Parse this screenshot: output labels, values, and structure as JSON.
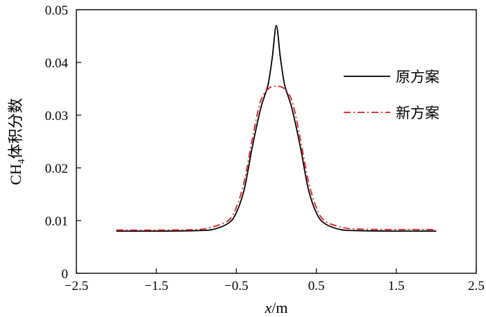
{
  "chart_data": {
    "type": "line",
    "xlabel_var": "x",
    "xlabel_unit": "/m",
    "ylabel_main": "CH",
    "ylabel_sub": "4",
    "ylabel_rest": "体积分数",
    "xlim": [
      -2.5,
      2.5
    ],
    "ylim": [
      0,
      0.05
    ],
    "x_ticks": [
      -2.5,
      -1.5,
      -0.5,
      0.5,
      1.5,
      2.5
    ],
    "x_tick_labels": [
      "−2.5",
      "−1.5",
      "−0.5",
      "0.5",
      "1.5",
      "2.5"
    ],
    "y_ticks": [
      0,
      0.01,
      0.02,
      0.03,
      0.04,
      0.05
    ],
    "y_tick_labels": [
      "0",
      "0.01",
      "0.02",
      "0.03",
      "0.04",
      "0.05"
    ],
    "grid": false,
    "legend_position": "right",
    "series": [
      {
        "name": "原方案",
        "color": "#000000",
        "dash": "solid",
        "x": [
          -2.0,
          -1.5,
          -1.0,
          -0.8,
          -0.6,
          -0.5,
          -0.4,
          -0.3,
          -0.2,
          -0.15,
          -0.1,
          -0.05,
          0.0,
          0.05,
          0.1,
          0.15,
          0.2,
          0.3,
          0.4,
          0.5,
          0.6,
          0.8,
          1.0,
          1.5,
          2.0
        ],
        "y": [
          0.008,
          0.008,
          0.0081,
          0.0083,
          0.0095,
          0.0115,
          0.016,
          0.024,
          0.031,
          0.0335,
          0.036,
          0.041,
          0.047,
          0.041,
          0.036,
          0.0335,
          0.031,
          0.024,
          0.016,
          0.0115,
          0.0095,
          0.0083,
          0.0081,
          0.008,
          0.008
        ]
      },
      {
        "name": "新方案",
        "color": "#e0191f",
        "dash": "dashdot",
        "x": [
          -2.0,
          -1.5,
          -1.0,
          -0.8,
          -0.6,
          -0.5,
          -0.4,
          -0.3,
          -0.2,
          -0.1,
          0.0,
          0.1,
          0.2,
          0.3,
          0.4,
          0.5,
          0.6,
          0.8,
          1.0,
          1.5,
          2.0
        ],
        "y": [
          0.0082,
          0.0082,
          0.0083,
          0.0088,
          0.01,
          0.0125,
          0.0175,
          0.0255,
          0.0325,
          0.035,
          0.0355,
          0.035,
          0.0325,
          0.0255,
          0.0175,
          0.0125,
          0.01,
          0.0088,
          0.0084,
          0.0083,
          0.0083
        ]
      }
    ]
  }
}
